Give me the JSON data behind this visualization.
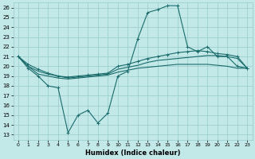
{
  "xlabel": "Humidex (Indice chaleur)",
  "background_color": "#c2e8e8",
  "grid_color": "#98cbcb",
  "line_color": "#1a6b6b",
  "x_ticks": [
    0,
    1,
    2,
    3,
    4,
    5,
    6,
    7,
    8,
    9,
    10,
    11,
    12,
    13,
    14,
    15,
    16,
    17,
    18,
    19,
    20,
    21,
    22,
    23
  ],
  "ylim": [
    12.5,
    26.5
  ],
  "xlim": [
    -0.5,
    23.5
  ],
  "yticks": [
    13,
    14,
    15,
    16,
    17,
    18,
    19,
    20,
    21,
    22,
    23,
    24,
    25,
    26
  ],
  "series": [
    [
      21.0,
      19.8,
      19.0,
      18.0,
      17.8,
      13.2,
      15.0,
      15.5,
      14.2,
      15.2,
      19.0,
      19.5,
      22.8,
      25.5,
      25.8,
      26.2,
      26.2,
      22.0,
      21.5,
      22.0,
      21.0,
      21.0,
      20.0,
      19.8
    ],
    [
      21.0,
      20.2,
      19.7,
      19.3,
      19.0,
      18.9,
      19.0,
      19.1,
      19.2,
      19.3,
      20.0,
      20.2,
      20.5,
      20.8,
      21.0,
      21.2,
      21.4,
      21.5,
      21.6,
      21.5,
      21.3,
      21.2,
      21.0,
      19.8
    ],
    [
      21.0,
      20.0,
      19.5,
      19.2,
      19.0,
      18.8,
      18.9,
      19.0,
      19.1,
      19.2,
      19.7,
      19.9,
      20.1,
      20.4,
      20.6,
      20.7,
      20.8,
      20.9,
      21.0,
      21.1,
      21.1,
      21.0,
      20.8,
      19.8
    ],
    [
      21.0,
      20.0,
      19.2,
      19.0,
      18.8,
      18.7,
      18.8,
      18.9,
      19.0,
      19.1,
      19.4,
      19.6,
      19.8,
      19.9,
      20.0,
      20.1,
      20.2,
      20.2,
      20.2,
      20.2,
      20.1,
      20.0,
      19.8,
      19.8
    ]
  ],
  "markers": [
    "+",
    "+",
    null,
    null
  ]
}
